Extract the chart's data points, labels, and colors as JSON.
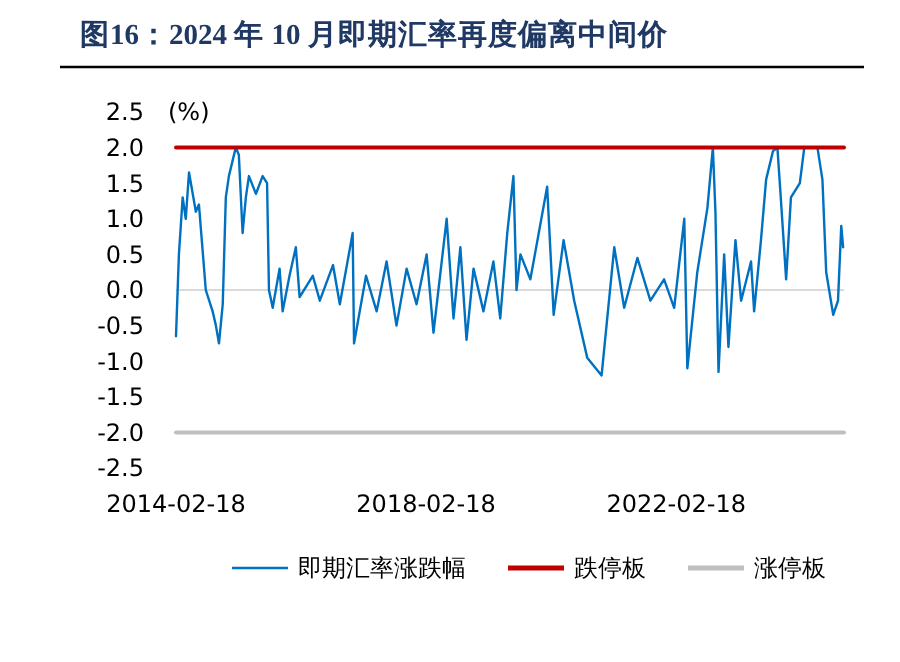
{
  "chart_data": {
    "type": "line",
    "title": "图16：2024 年 10 月即期汇率再度偏离中间价",
    "ylabel": "(%)",
    "xlim": [
      "2014-02-18",
      "2024-10-25"
    ],
    "xticks": [
      "2014-02-18",
      "2018-02-18",
      "2022-02-18"
    ],
    "ylim": [
      -2.5,
      2.5
    ],
    "yticks": [
      {
        "value": -2.5,
        "label": "-2.5"
      },
      {
        "value": -2,
        "label": "-2.0"
      },
      {
        "value": -1.5,
        "label": "-1.5"
      },
      {
        "value": -1,
        "label": "-1.0"
      },
      {
        "value": -0.5,
        "label": "-0.5"
      },
      {
        "value": 0,
        "label": "0.0"
      },
      {
        "value": 0.5,
        "label": "0.5"
      },
      {
        "value": 1,
        "label": "1.0"
      },
      {
        "value": 1.5,
        "label": "1.5"
      },
      {
        "value": 2,
        "label": "2.0"
      },
      {
        "value": 2.5,
        "label": "2.5"
      }
    ],
    "ref_lines": [
      {
        "axis": "y",
        "value": 0,
        "color": "#d9d9d9"
      }
    ],
    "legend": "bottom",
    "series": [
      {
        "name": "即期汇率涨跌幅",
        "color": "#0070c0",
        "x": [
          "2014-02-18",
          "2014-03-07",
          "2014-03-29",
          "2014-04-16",
          "2014-05-05",
          "2014-06-14",
          "2014-07-02",
          "2014-08-11",
          "2014-09-20",
          "2014-10-09",
          "2014-10-27",
          "2014-11-18",
          "2014-12-06",
          "2014-12-24",
          "2015-02-02",
          "2015-02-20",
          "2015-03-14",
          "2015-04-02",
          "2015-04-20",
          "2015-05-31",
          "2015-07-09",
          "2015-08-04",
          "2015-08-15",
          "2015-09-06",
          "2015-10-16",
          "2015-11-03",
          "2015-12-13",
          "2016-01-19",
          "2016-02-10",
          "2016-04-27",
          "2016-06-07",
          "2016-08-23",
          "2016-10-02",
          "2016-12-16",
          "2016-12-24",
          "2017-03-04",
          "2017-05-05",
          "2017-07-02",
          "2017-08-29",
          "2017-10-27",
          "2017-12-24",
          "2018-02-21",
          "2018-04-02",
          "2018-06-18",
          "2018-07-28",
          "2018-09-06",
          "2018-10-12",
          "2018-11-22",
          "2019-01-19",
          "2019-03-18",
          "2019-04-27",
          "2019-06-07",
          "2019-07-13",
          "2019-07-31",
          "2019-08-23",
          "2019-10-20",
          "2020-01-26",
          "2020-03-04",
          "2020-05-01",
          "2020-07-02",
          "2020-09-16",
          "2020-12-09",
          "2021-02-21",
          "2021-04-20",
          "2021-07-06",
          "2021-09-20",
          "2021-12-09",
          "2022-02-06",
          "2022-04-06",
          "2022-04-24",
          "2022-06-21",
          "2022-08-19",
          "2022-09-20",
          "2022-10-05",
          "2022-10-23",
          "2022-11-25",
          "2022-12-20",
          "2023-01-30",
          "2023-03-04",
          "2023-05-01",
          "2023-05-19",
          "2023-06-28",
          "2023-07-28",
          "2023-09-06",
          "2023-10-02",
          "2023-10-23",
          "2023-11-22",
          "2023-12-20",
          "2024-02-10",
          "2024-03-07",
          "2024-05-23",
          "2024-06-21",
          "2024-07-13",
          "2024-08-23",
          "2024-09-20",
          "2024-10-09",
          "2024-10-20"
        ],
        "values": [
          -0.65,
          0.5,
          1.3,
          1.0,
          1.65,
          1.1,
          1.2,
          0.0,
          -0.3,
          -0.5,
          -0.75,
          -0.2,
          1.3,
          1.6,
          2.0,
          1.9,
          0.8,
          1.3,
          1.6,
          1.35,
          1.6,
          1.5,
          0.0,
          -0.25,
          0.3,
          -0.3,
          0.2,
          0.6,
          -0.1,
          0.2,
          -0.15,
          0.35,
          -0.2,
          0.8,
          -0.75,
          0.2,
          -0.3,
          0.4,
          -0.5,
          0.3,
          -0.2,
          0.5,
          -0.6,
          1.0,
          -0.4,
          0.6,
          -0.7,
          0.3,
          -0.3,
          0.4,
          -0.4,
          0.8,
          1.6,
          0.0,
          0.5,
          0.15,
          1.45,
          -0.35,
          0.7,
          -0.15,
          -0.95,
          -1.2,
          0.6,
          -0.25,
          0.45,
          -0.15,
          0.15,
          -0.25,
          1.0,
          -1.1,
          0.25,
          1.15,
          2.0,
          1.1,
          -1.15,
          0.5,
          -0.8,
          0.7,
          -0.15,
          0.4,
          -0.3,
          0.7,
          1.55,
          1.95,
          2.0,
          1.25,
          0.15,
          1.3,
          1.5,
          2.0,
          2.0,
          1.55,
          0.25,
          -0.35,
          -0.15,
          0.9,
          0.6
        ]
      },
      {
        "name": "跌停板",
        "color": "#c00000",
        "x": [
          "2014-02-18",
          "2024-10-25"
        ],
        "values": [
          2,
          2
        ]
      },
      {
        "name": "涨停板",
        "color": "#bfbfbf",
        "x": [
          "2014-02-18",
          "2024-10-25"
        ],
        "values": [
          -2,
          -2
        ]
      }
    ]
  }
}
